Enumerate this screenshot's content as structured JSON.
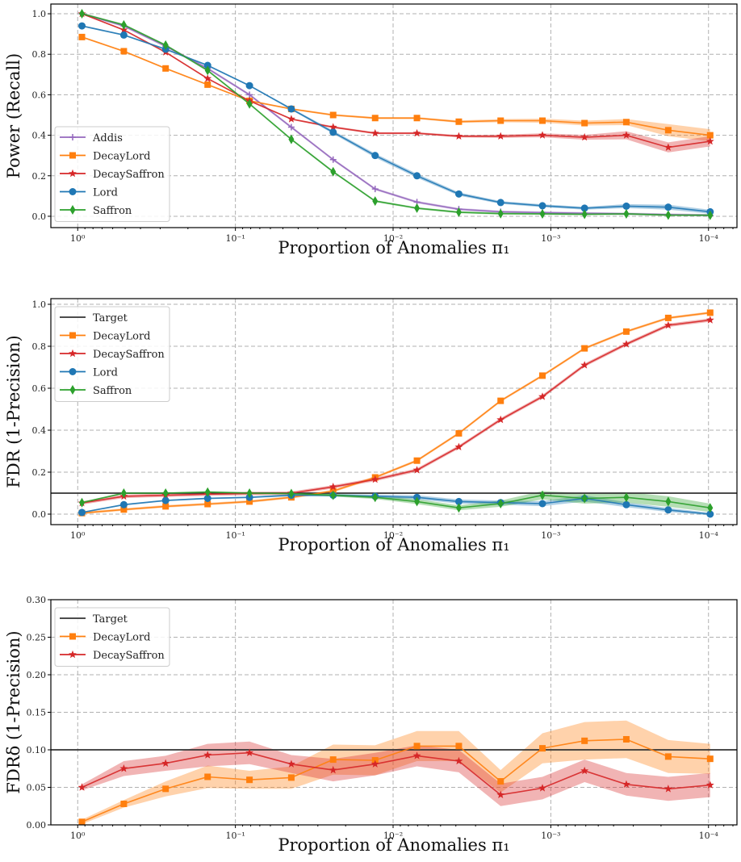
{
  "chart_data": [
    {
      "type": "line",
      "xscale": "log",
      "x_reversed": true,
      "xlim": [
        1.48,
        6.6e-05
      ],
      "ylim": [
        -0.056,
        1.048
      ],
      "grid": true,
      "legend_placement": "lower-left",
      "xlabel": "Proportion of Anomalies π₁",
      "ylabel": "Power (Recall)",
      "xticks": [
        {
          "value": 1,
          "label": "10⁰"
        },
        {
          "value": 0.1,
          "label": "10⁻¹"
        },
        {
          "value": 0.01,
          "label": "10⁻²"
        },
        {
          "value": 0.001,
          "label": "10⁻³"
        },
        {
          "value": 0.0001,
          "label": "10⁻⁴"
        }
      ],
      "yticks": [
        {
          "value": 0,
          "label": "0.0"
        },
        {
          "value": 0.2,
          "label": "0.2"
        },
        {
          "value": 0.4,
          "label": "0.4"
        },
        {
          "value": 0.6,
          "label": "0.6"
        },
        {
          "value": 0.8,
          "label": "0.8"
        },
        {
          "value": 1.0,
          "label": "1.0"
        }
      ],
      "x": [
        0.94,
        0.51,
        0.277,
        0.15,
        0.0814,
        0.0442,
        0.024,
        0.013,
        0.00706,
        0.00383,
        0.00208,
        0.00113,
        0.000611,
        0.000332,
        0.00018,
        9.76e-05
      ],
      "series": [
        {
          "name": "Addis",
          "color": "#9467bd",
          "marker": "plus",
          "values": [
            1.0,
            0.94,
            0.84,
            0.73,
            0.6,
            0.44,
            0.28,
            0.135,
            0.07,
            0.035,
            0.022,
            0.018,
            0.015,
            0.012,
            0.008,
            0.005
          ],
          "band": 0.006
        },
        {
          "name": "DecayLord",
          "color": "#ff7f0e",
          "marker": "square",
          "values": [
            0.885,
            0.815,
            0.73,
            0.65,
            0.57,
            0.53,
            0.5,
            0.485,
            0.485,
            0.467,
            0.472,
            0.472,
            0.46,
            0.465,
            0.425,
            0.4
          ],
          "band": [
            0.004,
            0.004,
            0.004,
            0.004,
            0.004,
            0.004,
            0.005,
            0.005,
            0.005,
            0.006,
            0.008,
            0.01,
            0.012,
            0.015,
            0.03,
            0.03
          ]
        },
        {
          "name": "DecaySaffron",
          "color": "#d62728",
          "marker": "star",
          "values": [
            1.0,
            0.92,
            0.81,
            0.68,
            0.57,
            0.48,
            0.44,
            0.41,
            0.41,
            0.395,
            0.395,
            0.4,
            0.39,
            0.4,
            0.34,
            0.37
          ],
          "band": [
            0.003,
            0.004,
            0.004,
            0.004,
            0.004,
            0.004,
            0.005,
            0.005,
            0.005,
            0.006,
            0.008,
            0.01,
            0.012,
            0.02,
            0.025,
            0.025
          ]
        },
        {
          "name": "Lord",
          "color": "#1f77b4",
          "marker": "circle",
          "values": [
            0.94,
            0.895,
            0.825,
            0.745,
            0.645,
            0.53,
            0.415,
            0.3,
            0.2,
            0.11,
            0.068,
            0.052,
            0.04,
            0.05,
            0.045,
            0.022
          ],
          "band": [
            0.004,
            0.004,
            0.004,
            0.004,
            0.004,
            0.005,
            0.008,
            0.01,
            0.01,
            0.008,
            0.007,
            0.007,
            0.007,
            0.01,
            0.012,
            0.01
          ]
        },
        {
          "name": "Saffron",
          "color": "#2ca02c",
          "marker": "thin_diamond",
          "values": [
            1.0,
            0.945,
            0.845,
            0.72,
            0.555,
            0.38,
            0.22,
            0.075,
            0.04,
            0.02,
            0.013,
            0.012,
            0.01,
            0.012,
            0.006,
            0.005
          ],
          "band": 0.005
        }
      ]
    },
    {
      "type": "line",
      "xscale": "log",
      "x_reversed": true,
      "xlim": [
        1.48,
        6.6e-05
      ],
      "ylim": [
        -0.05,
        1.027
      ],
      "grid": true,
      "legend_placement": "upper-left",
      "xlabel": "Proportion of Anomalies π₁",
      "ylabel": "FDR (1-Precision)",
      "target": {
        "name": "Target",
        "value": 0.1,
        "color": "#333333"
      },
      "xticks": [
        {
          "value": 1,
          "label": "10⁰"
        },
        {
          "value": 0.1,
          "label": "10⁻¹"
        },
        {
          "value": 0.01,
          "label": "10⁻²"
        },
        {
          "value": 0.001,
          "label": "10⁻³"
        },
        {
          "value": 0.0001,
          "label": "10⁻⁴"
        }
      ],
      "yticks": [
        {
          "value": 0,
          "label": "0.0"
        },
        {
          "value": 0.2,
          "label": "0.2"
        },
        {
          "value": 0.4,
          "label": "0.4"
        },
        {
          "value": 0.6,
          "label": "0.6"
        },
        {
          "value": 0.8,
          "label": "0.8"
        },
        {
          "value": 1.0,
          "label": "1.0"
        }
      ],
      "x": [
        0.94,
        0.51,
        0.277,
        0.15,
        0.0814,
        0.0442,
        0.024,
        0.013,
        0.00706,
        0.00383,
        0.00208,
        0.00113,
        0.000611,
        0.000332,
        0.00018,
        9.76e-05
      ],
      "series": [
        {
          "name": "DecayLord",
          "color": "#ff7f0e",
          "marker": "square",
          "values": [
            0.005,
            0.022,
            0.037,
            0.048,
            0.06,
            0.08,
            0.11,
            0.175,
            0.255,
            0.385,
            0.54,
            0.66,
            0.79,
            0.87,
            0.935,
            0.96
          ],
          "band": 0.006
        },
        {
          "name": "DecaySaffron",
          "color": "#d62728",
          "marker": "star",
          "values": [
            0.053,
            0.085,
            0.09,
            0.095,
            0.098,
            0.1,
            0.13,
            0.165,
            0.21,
            0.32,
            0.45,
            0.56,
            0.71,
            0.81,
            0.9,
            0.925
          ],
          "band": 0.008
        },
        {
          "name": "Lord",
          "color": "#1f77b4",
          "marker": "circle",
          "values": [
            0.008,
            0.045,
            0.065,
            0.075,
            0.08,
            0.09,
            0.09,
            0.085,
            0.08,
            0.06,
            0.055,
            0.05,
            0.075,
            0.045,
            0.02,
            0.0
          ],
          "band": [
            0.003,
            0.004,
            0.004,
            0.004,
            0.004,
            0.005,
            0.006,
            0.008,
            0.01,
            0.01,
            0.01,
            0.012,
            0.015,
            0.012,
            0.01,
            0.006
          ]
        },
        {
          "name": "Saffron",
          "color": "#2ca02c",
          "marker": "thin_diamond",
          "values": [
            0.055,
            0.1,
            0.1,
            0.105,
            0.1,
            0.098,
            0.09,
            0.08,
            0.06,
            0.03,
            0.05,
            0.09,
            0.075,
            0.08,
            0.06,
            0.03
          ],
          "band": [
            0.004,
            0.004,
            0.004,
            0.005,
            0.005,
            0.005,
            0.006,
            0.008,
            0.012,
            0.012,
            0.015,
            0.02,
            0.025,
            0.025,
            0.025,
            0.02
          ]
        }
      ]
    },
    {
      "type": "line",
      "xscale": "log",
      "x_reversed": true,
      "xlim": [
        1.48,
        6.6e-05
      ],
      "ylim": [
        0,
        0.3
      ],
      "grid": true,
      "legend_placement": "upper-left",
      "xlabel": "Proportion of Anomalies π₁",
      "ylabel": "FDRδ (1-Precision)",
      "target": {
        "name": "Target",
        "value": 0.1,
        "color": "#333333"
      },
      "xticks": [
        {
          "value": 1,
          "label": "10⁰"
        },
        {
          "value": 0.1,
          "label": "10⁻¹"
        },
        {
          "value": 0.01,
          "label": "10⁻²"
        },
        {
          "value": 0.001,
          "label": "10⁻³"
        },
        {
          "value": 0.0001,
          "label": "10⁻⁴"
        }
      ],
      "yticks": [
        {
          "value": 0,
          "label": "0.00"
        },
        {
          "value": 0.05,
          "label": "0.05"
        },
        {
          "value": 0.1,
          "label": "0.10"
        },
        {
          "value": 0.15,
          "label": "0.15"
        },
        {
          "value": 0.2,
          "label": "0.20"
        },
        {
          "value": 0.25,
          "label": "0.25"
        },
        {
          "value": 0.3,
          "label": "0.30"
        }
      ],
      "x": [
        0.94,
        0.51,
        0.277,
        0.15,
        0.0814,
        0.0442,
        0.024,
        0.013,
        0.00706,
        0.00383,
        0.00208,
        0.00113,
        0.000611,
        0.000332,
        0.00018,
        9.76e-05
      ],
      "series": [
        {
          "name": "DecayLord",
          "color": "#ff7f0e",
          "marker": "square",
          "values": [
            0.004,
            0.028,
            0.048,
            0.064,
            0.06,
            0.063,
            0.087,
            0.086,
            0.105,
            0.105,
            0.058,
            0.102,
            0.112,
            0.114,
            0.091,
            0.088
          ],
          "band": [
            0.003,
            0.005,
            0.01,
            0.015,
            0.012,
            0.015,
            0.02,
            0.02,
            0.02,
            0.02,
            0.015,
            0.02,
            0.025,
            0.025,
            0.022,
            0.02
          ]
        },
        {
          "name": "DecaySaffron",
          "color": "#d62728",
          "marker": "star",
          "values": [
            0.05,
            0.075,
            0.082,
            0.093,
            0.096,
            0.081,
            0.073,
            0.081,
            0.092,
            0.085,
            0.04,
            0.049,
            0.072,
            0.054,
            0.048,
            0.053
          ],
          "band": [
            0.004,
            0.01,
            0.01,
            0.015,
            0.015,
            0.012,
            0.015,
            0.015,
            0.014,
            0.015,
            0.015,
            0.015,
            0.015,
            0.015,
            0.016,
            0.016
          ]
        }
      ]
    }
  ]
}
